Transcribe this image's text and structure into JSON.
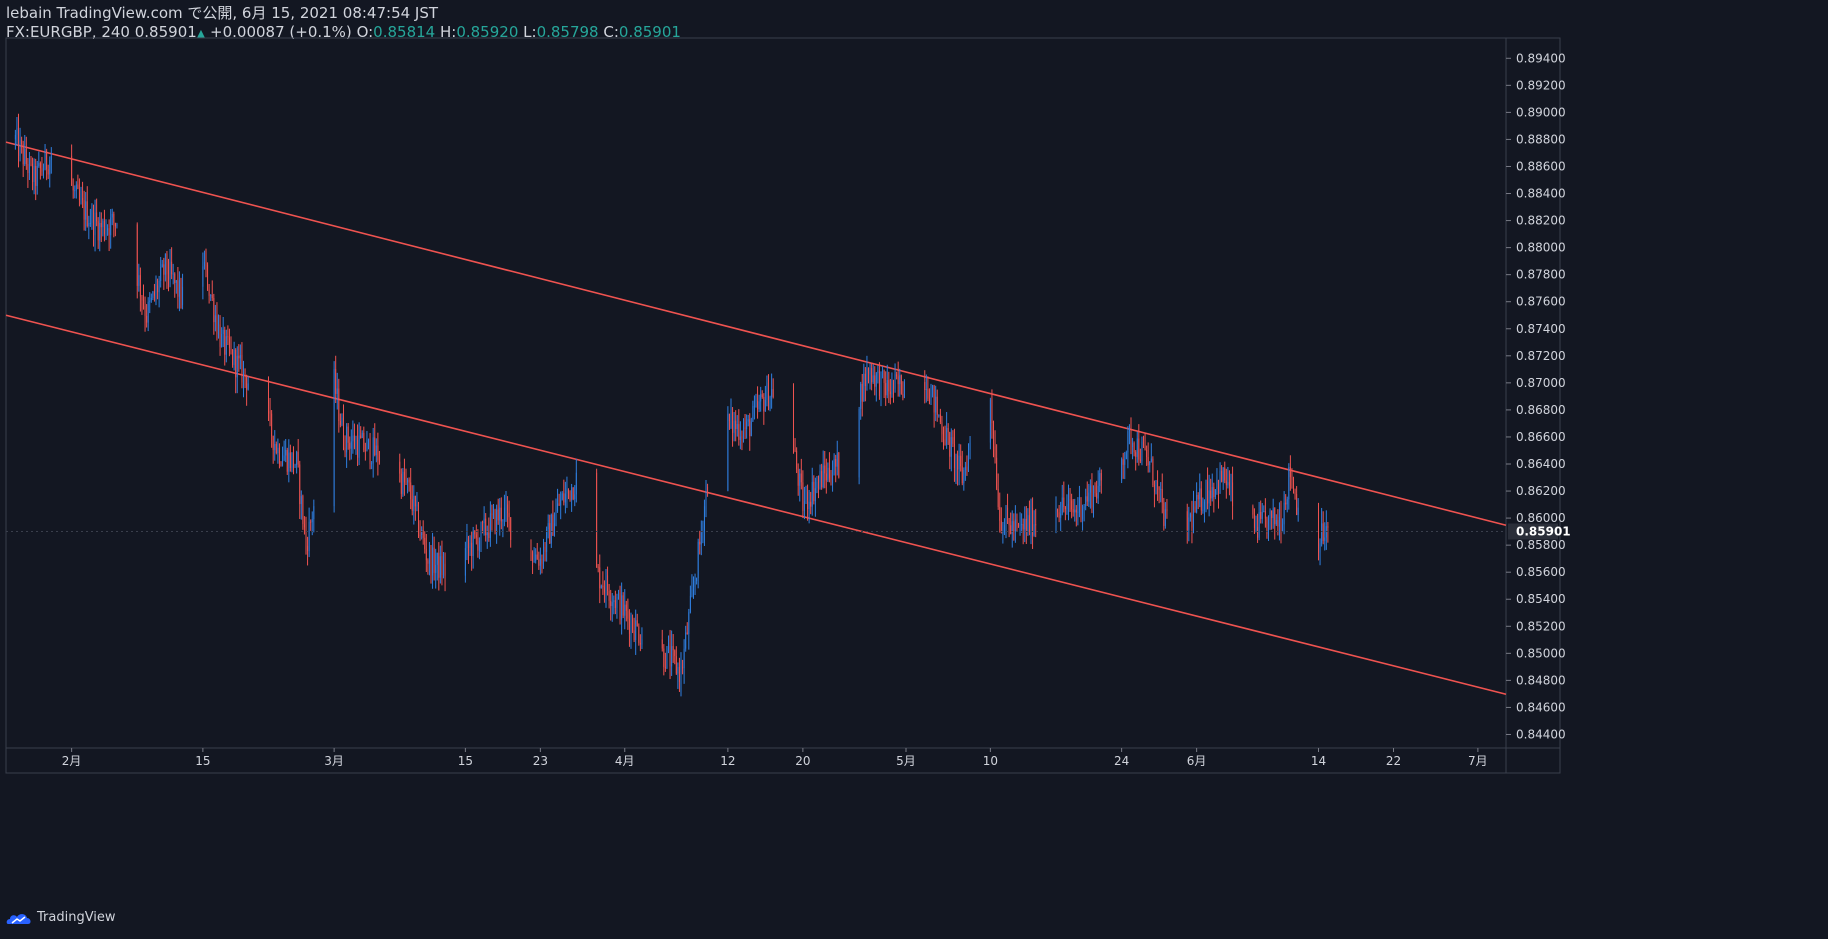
{
  "header": {
    "publisher": "lebain TradingView.com で公開, 6月 15, 2021 08:47:54 JST",
    "symbol": "FX:EURGBP, 240",
    "last": "0.85901",
    "change_arrow": "▲",
    "change": "+0.00087 (+0.1%)",
    "o_label": "O:",
    "o_value": "0.85814",
    "h_label": "H:",
    "h_value": "0.85920",
    "l_label": "L:",
    "l_value": "0.85798",
    "c_label": "C:",
    "c_value": "0.85901"
  },
  "footer": {
    "brand": "TradingView"
  },
  "colors": {
    "background": "#131722",
    "up_candle": "#2f7fe0",
    "down_candle": "#ef5350",
    "channel": "#ef5350",
    "axis_text": "#d1d4dc",
    "price_line": "#3a3f4c",
    "value_green": "#26a69a"
  },
  "chart_data": {
    "type": "candlestick",
    "symbol": "FX:EURGBP",
    "timeframe": "240",
    "ylim": [
      0.843,
      0.8955
    ],
    "y_ticks": [
      "0.89400",
      "0.89200",
      "0.89000",
      "0.88800",
      "0.88600",
      "0.88400",
      "0.88200",
      "0.88000",
      "0.87800",
      "0.87600",
      "0.87400",
      "0.87200",
      "0.87000",
      "0.86800",
      "0.86600",
      "0.86400",
      "0.86200",
      "0.86000",
      "0.85800",
      "0.85600",
      "0.85400",
      "0.85200",
      "0.85000",
      "0.84800",
      "0.84600",
      "0.84400"
    ],
    "y_tick_values": [
      0.894,
      0.892,
      0.89,
      0.888,
      0.886,
      0.884,
      0.882,
      0.88,
      0.878,
      0.876,
      0.874,
      0.872,
      0.87,
      0.868,
      0.866,
      0.864,
      0.862,
      0.86,
      0.858,
      0.856,
      0.854,
      0.852,
      0.85,
      0.848,
      0.846,
      0.844
    ],
    "x_ticks": [
      "2月",
      "15",
      "3月",
      "15",
      "23",
      "4月",
      "12",
      "20",
      "5月",
      "10",
      "24",
      "6月",
      "14",
      "22",
      "7月"
    ],
    "x_tick_dates": [
      "2021-02-01",
      "2021-02-15",
      "2021-03-01",
      "2021-03-15",
      "2021-03-23",
      "2021-04-01",
      "2021-04-12",
      "2021-04-20",
      "2021-05-01",
      "2021-05-10",
      "2021-05-24",
      "2021-06-01",
      "2021-06-14",
      "2021-06-22",
      "2021-07-01"
    ],
    "current_price": "0.85901",
    "close_path": [
      [
        "2021-01-26",
        0.888
      ],
      [
        "2021-01-28",
        0.885
      ],
      [
        "2021-01-30",
        0.887
      ],
      [
        "2021-02-02",
        0.883
      ],
      [
        "2021-02-04",
        0.8815
      ],
      [
        "2021-02-06",
        0.882
      ],
      [
        "2021-02-08",
        0.878
      ],
      [
        "2021-02-09",
        0.875
      ],
      [
        "2021-02-11",
        0.8785
      ],
      [
        "2021-02-13",
        0.876
      ],
      [
        "2021-02-15",
        0.879
      ],
      [
        "2021-02-17",
        0.873
      ],
      [
        "2021-02-19",
        0.871
      ],
      [
        "2021-02-21",
        0.869
      ],
      [
        "2021-02-23",
        0.865
      ],
      [
        "2021-02-25",
        0.864
      ],
      [
        "2021-02-26",
        0.858
      ],
      [
        "2021-02-28",
        0.865
      ],
      [
        "2021-03-01",
        0.87
      ],
      [
        "2021-03-02",
        0.866
      ],
      [
        "2021-03-05",
        0.865
      ],
      [
        "2021-03-07",
        0.864
      ],
      [
        "2021-03-09",
        0.862
      ],
      [
        "2021-03-11",
        0.857
      ],
      [
        "2021-03-13",
        0.856
      ],
      [
        "2021-03-15",
        0.8575
      ],
      [
        "2021-03-17",
        0.859
      ],
      [
        "2021-03-19",
        0.8605
      ],
      [
        "2021-03-21",
        0.858
      ],
      [
        "2021-03-23",
        0.857
      ],
      [
        "2021-03-25",
        0.861
      ],
      [
        "2021-03-27",
        0.863
      ],
      [
        "2021-03-29",
        0.856
      ],
      [
        "2021-03-31",
        0.854
      ],
      [
        "2021-04-02",
        0.852
      ],
      [
        "2021-04-04",
        0.8505
      ],
      [
        "2021-04-06",
        0.8495
      ],
      [
        "2021-04-07",
        0.8485
      ],
      [
        "2021-04-09",
        0.858
      ],
      [
        "2021-04-10",
        0.864
      ],
      [
        "2021-04-12",
        0.867
      ],
      [
        "2021-04-14",
        0.8665
      ],
      [
        "2021-04-16",
        0.869
      ],
      [
        "2021-04-18",
        0.87
      ],
      [
        "2021-04-19",
        0.865
      ],
      [
        "2021-04-20",
        0.861
      ],
      [
        "2021-04-22",
        0.863
      ],
      [
        "2021-04-24",
        0.864
      ],
      [
        "2021-04-26",
        0.869
      ],
      [
        "2021-04-27",
        0.871
      ],
      [
        "2021-04-29",
        0.8695
      ],
      [
        "2021-05-01",
        0.87
      ],
      [
        "2021-05-03",
        0.8705
      ],
      [
        "2021-05-05",
        0.8665
      ],
      [
        "2021-05-07",
        0.863
      ],
      [
        "2021-05-09",
        0.8685
      ],
      [
        "2021-05-10",
        0.869
      ],
      [
        "2021-05-11",
        0.86
      ],
      [
        "2021-05-13",
        0.859
      ],
      [
        "2021-05-15",
        0.86
      ],
      [
        "2021-05-17",
        0.861
      ],
      [
        "2021-05-19",
        0.8605
      ],
      [
        "2021-05-21",
        0.862
      ],
      [
        "2021-05-23",
        0.863
      ],
      [
        "2021-05-25",
        0.866
      ],
      [
        "2021-05-27",
        0.864
      ],
      [
        "2021-05-29",
        0.859
      ],
      [
        "2021-05-31",
        0.8595
      ],
      [
        "2021-06-02",
        0.862
      ],
      [
        "2021-06-04",
        0.863
      ],
      [
        "2021-06-06",
        0.859
      ],
      [
        "2021-06-08",
        0.8595
      ],
      [
        "2021-06-10",
        0.86
      ],
      [
        "2021-06-11",
        0.8635
      ],
      [
        "2021-06-12",
        0.86
      ],
      [
        "2021-06-13",
        0.858
      ],
      [
        "2021-06-14",
        0.8585
      ],
      [
        "2021-06-15",
        0.859
      ]
    ],
    "channel": {
      "upper": [
        [
          "2021-01-25",
          0.8878
        ],
        [
          "2021-07-01",
          0.86
        ]
      ],
      "lower": [
        [
          "2021-01-25",
          0.875
        ],
        [
          "2021-07-01",
          0.8475
        ]
      ]
    }
  }
}
